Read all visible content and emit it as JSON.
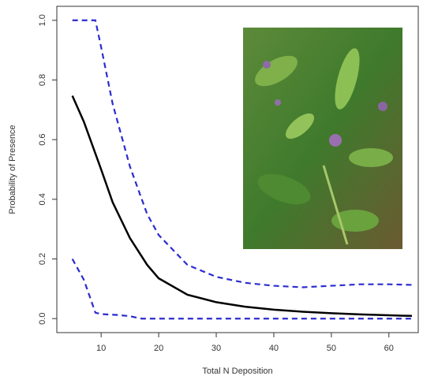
{
  "chart_data": {
    "type": "line",
    "xlabel": "Total N Deposition",
    "ylabel": "Probability of Presence",
    "xlim": [
      2.3,
      65.1
    ],
    "ylim": [
      -0.047,
      1.047
    ],
    "xticks": [
      10,
      20,
      30,
      40,
      50,
      60
    ],
    "yticks": [
      {
        "value": 0,
        "label": "0.0"
      },
      0.2,
      0.4,
      0.6,
      0.8,
      {
        "value": 1,
        "label": "1.0"
      }
    ],
    "series": [
      {
        "color": "#000000",
        "dashed": false,
        "x": [
          5,
          7,
          10,
          12,
          15,
          18,
          20,
          25,
          30,
          35,
          40,
          45,
          50,
          55,
          60,
          64
        ],
        "values": [
          0.747,
          0.66,
          0.5,
          0.39,
          0.27,
          0.18,
          0.135,
          0.08,
          0.055,
          0.04,
          0.03,
          0.023,
          0.018,
          0.014,
          0.011,
          0.009
        ]
      },
      {
        "color": "#2b2bd0",
        "dashed": true,
        "x": [
          5,
          7,
          9,
          10,
          12,
          15,
          18,
          20,
          25,
          30,
          35,
          40,
          45,
          50,
          55,
          60,
          64
        ],
        "values": [
          1.0,
          1.0,
          1.0,
          0.91,
          0.72,
          0.51,
          0.35,
          0.28,
          0.18,
          0.14,
          0.12,
          0.11,
          0.105,
          0.11,
          0.115,
          0.115,
          0.113
        ]
      },
      {
        "color": "#2b2bd0",
        "dashed": true,
        "x": [
          5,
          7,
          9,
          10,
          13,
          15,
          17,
          20,
          30,
          40,
          50,
          60,
          64
        ],
        "values": [
          0.2,
          0.13,
          0.02,
          0.015,
          0.012,
          0.008,
          0.0,
          0.0,
          0.0,
          0.0,
          0.0,
          0.0,
          0.0
        ]
      }
    ]
  }
}
